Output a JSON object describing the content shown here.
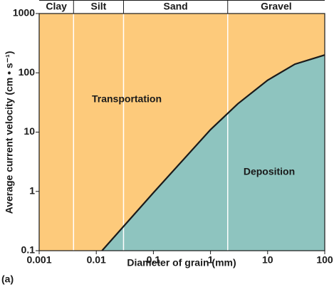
{
  "chart_data": {
    "type": "line",
    "x_label": "Diameter of grain (mm)",
    "y_label": "Average current  velocity (cm • s⁻¹)",
    "panel_label": "(a)",
    "log_x": true,
    "log_y": true,
    "xlim": [
      0.001,
      100
    ],
    "ylim": [
      0.1,
      1000
    ],
    "xticks": [
      0.001,
      0.01,
      0.1,
      1,
      10,
      100
    ],
    "yticks": [
      0.1,
      1,
      10,
      100,
      1000
    ],
    "x": [
      0.0126,
      0.1,
      1,
      3,
      10,
      30,
      100
    ],
    "values": [
      0.1,
      0.95,
      11,
      30,
      75,
      140,
      200
    ],
    "color": "#1a1a1a",
    "regions": [
      {
        "label": "Transportation",
        "color": "#fdca7b"
      },
      {
        "label": "Deposition",
        "color": "#8ec4bf"
      }
    ],
    "size_classes": {
      "names": [
        "Clay",
        "Silt",
        "Sand",
        "Gravel"
      ],
      "boundaries": [
        0.004,
        0.03,
        2
      ]
    }
  }
}
